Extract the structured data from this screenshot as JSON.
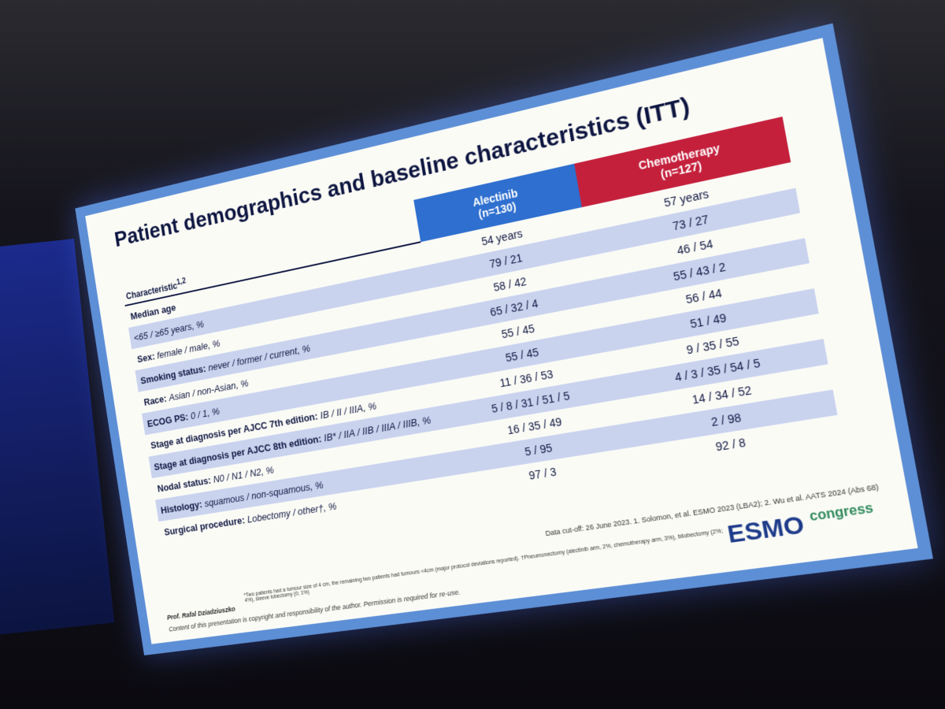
{
  "slide": {
    "title": "Patient demographics and baseline characteristics (ITT)",
    "table": {
      "header": {
        "characteristic": "Characteristic",
        "characteristic_sup": "1,2",
        "alectinib": [
          "Alectinib",
          "(n=130)"
        ],
        "chemotherapy": [
          "Chemotherapy",
          "(n=127)"
        ]
      },
      "rows": [
        {
          "bold": "Median age",
          "rest": "",
          "alectinib": "54 years",
          "chemotherapy": "57 years"
        },
        {
          "bold": "",
          "rest": "<65 / ≥65 years, %",
          "alectinib": "79 / 21",
          "chemotherapy": "73 / 27"
        },
        {
          "bold": "Sex:",
          "rest": "female / male, %",
          "alectinib": "58 / 42",
          "chemotherapy": "46 / 54"
        },
        {
          "bold": "Smoking status:",
          "rest": "never / former / current, %",
          "alectinib": "65 / 32 / 4",
          "chemotherapy": "55 / 43 / 2"
        },
        {
          "bold": "Race:",
          "rest": "Asian / non-Asian, %",
          "alectinib": "55 / 45",
          "chemotherapy": "56 / 44"
        },
        {
          "bold": "ECOG PS:",
          "rest": "0 / 1, %",
          "alectinib": "55 / 45",
          "chemotherapy": "51 / 49"
        },
        {
          "bold": "Stage at diagnosis per AJCC 7th edition:",
          "rest": "IB / II / IIIA, %",
          "alectinib": "11 / 36 / 53",
          "chemotherapy": "9 / 35 / 55"
        },
        {
          "bold": "Stage at diagnosis per AJCC 8th edition:",
          "rest": "IB* / IIA / IIB / IIIA / IIIB, %",
          "alectinib": "5 / 8 / 31 / 51 / 5",
          "chemotherapy": "4 / 3 / 35 / 54 / 5"
        },
        {
          "bold": "Nodal status:",
          "rest": "N0 / N1 / N2, %",
          "alectinib": "16 / 35 / 49",
          "chemotherapy": "14 / 34 / 52"
        },
        {
          "bold": "Histology:",
          "rest": "squamous / non-squamous, %",
          "alectinib": "5 / 95",
          "chemotherapy": "2 / 98"
        },
        {
          "bold": "Surgical procedure:",
          "rest": "Lobectomy / other†, %",
          "alectinib": "97 / 3",
          "chemotherapy": "92 / 8"
        }
      ]
    },
    "references": "Data cut-off: 26 June 2023. 1. Solomon, et al. ESMO 2023 (LBA2); 2. Wu et al. AATS 2024 (Abs 68)",
    "footnote": "*Two patients had a tumour size of 4 cm, the remaining two patients had tumours <4cm (major protocol deviations reported). †Pneumonectomy (alectinib arm, 2%, chemotherapy arm, 3%), bilobectomy (2%; 4%), sleeve lobectomy (0; 1%)",
    "presenter": "Prof. Rafal Dziadziuszko",
    "copyright": "Content of this presentation is copyright and responsibility of the author. Permission is required for re-use.",
    "logo": {
      "brand": "ESMO",
      "word": "congress"
    }
  }
}
